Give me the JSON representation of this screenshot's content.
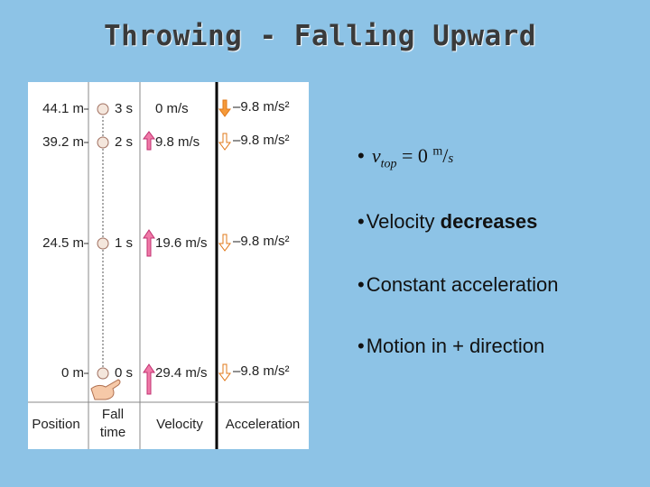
{
  "title": "Throwing - Falling Upward",
  "figure": {
    "rows": [
      {
        "position": "44.1 m",
        "time": "3 s",
        "velocity": "0 m/s",
        "acceleration": "–9.8 m/s²"
      },
      {
        "position": "39.2 m",
        "time": "2 s",
        "velocity": "9.8 m/s",
        "acceleration": "–9.8 m/s²"
      },
      {
        "position": "24.5 m",
        "time": "1 s",
        "velocity": "19.6 m/s",
        "acceleration": "–9.8 m/s²"
      },
      {
        "position": "0 m",
        "time": "0 s",
        "velocity": "29.4 m/s",
        "acceleration": "–9.8 m/s²"
      }
    ],
    "headers": {
      "position": "Position",
      "fall_time": [
        "Fall",
        "time"
      ],
      "velocity": "Velocity",
      "acceleration": "Acceleration"
    }
  },
  "bullets": [
    {
      "symbol": "v",
      "subscript": "top",
      "relation": "= 0",
      "unit_numerator": "m",
      "unit_denominator": "s"
    },
    {
      "text": "Velocity",
      "emphasis": "decreases"
    },
    {
      "text": "Constant acceleration"
    },
    {
      "text": "Motion in + direction"
    }
  ]
}
